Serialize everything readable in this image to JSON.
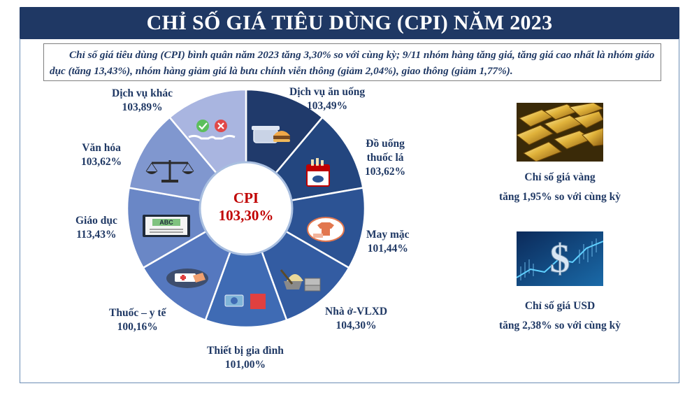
{
  "title": "CHỈ SỐ GIÁ TIÊU DÙNG (CPI) NĂM 2023",
  "summary": "Chỉ số giá tiêu dùng (CPI) bình quân năm 2023 tăng 3,30% so với cùng kỳ; 9/11 nhóm hàng tăng giá, tăng giá cao nhất là nhóm giáo dục (tăng 13,43%), nhóm hàng giảm giá là bưu chính viễn thông (giảm 2,04%), giao thông (giảm 1,77%).",
  "center": {
    "label": "CPI",
    "value": "103,30%"
  },
  "segments": [
    {
      "name": "Dịch vụ ăn uống",
      "value": "103,49%",
      "icon": "food-container-icon",
      "color": "#203a6b"
    },
    {
      "name": "Đồ uống thuốc lá",
      "value": "103,62%",
      "icon": "cigarette-pack-icon",
      "color": "#23467f"
    },
    {
      "name": "May mặc",
      "value": "101,44%",
      "icon": "clothing-icon",
      "color": "#2c5394"
    },
    {
      "name": "Nhà ở-VLXD",
      "value": "104,30%",
      "icon": "construction-materials-icon",
      "color": "#335ca2"
    },
    {
      "name": "Thiết bị gia đình",
      "value": "101,00%",
      "icon": "household-appliance-icon",
      "color": "#3f6bb4"
    },
    {
      "name": "Thuốc – y tế",
      "value": "100,16%",
      "icon": "medicine-icon",
      "color": "#5578bf"
    },
    {
      "name": "Giáo dục",
      "value": "113,43%",
      "icon": "abc-board-icon",
      "color": "#6a87c6"
    },
    {
      "name": "Văn hóa",
      "value": "103,62%",
      "icon": "scales-icon",
      "color": "#8097cf"
    },
    {
      "name": "Dịch vụ khác",
      "value": "103,89%",
      "icon": "check-cross-hands-icon",
      "color": "#a9b5e0"
    }
  ],
  "labels": {
    "dvau": [
      "Dịch vụ ăn uống",
      "103,49%"
    ],
    "douong": [
      "Đồ uống",
      "thuốc lá",
      "103,62%"
    ],
    "maymac": [
      "May mặc",
      "101,44%"
    ],
    "nhao": [
      "Nhà ở-VLXD",
      "104,30%"
    ],
    "thietbi": [
      "Thiết bị gia đình",
      "101,00%"
    ],
    "thuoc": [
      "Thuốc – y tế",
      "100,16%"
    ],
    "giaoduc": [
      "Giáo dục",
      "113,43%"
    ],
    "vanhoa": [
      "Văn hóa",
      "103,62%"
    ],
    "dvkhac": [
      "Dịch vụ khác",
      "103,89%"
    ]
  },
  "side": {
    "gold": {
      "line1": "Chỉ số giá vàng",
      "line2": "tăng 1,95% so với cùng kỳ",
      "icon": "gold-bars-icon"
    },
    "usd": {
      "line1": "Chỉ số giá USD",
      "line2": "tăng 2,38% so với cùng kỳ",
      "icon": "dollar-sign-icon"
    }
  }
}
